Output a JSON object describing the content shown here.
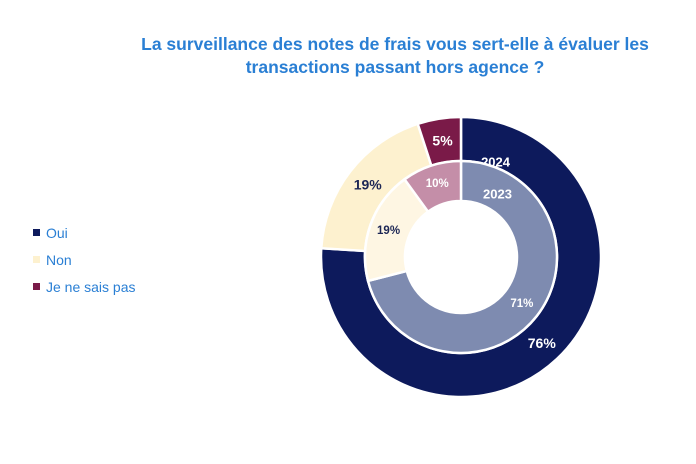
{
  "chart_data": {
    "type": "donut",
    "title_lines": [
      "La surveillance des notes de frais vous sert-elle à évaluer les",
      "transactions passant hors agence ?"
    ],
    "legend_position": "left",
    "categories": [
      "Oui",
      "Non",
      "Je ne sais pas"
    ],
    "series": [
      {
        "name": "2024",
        "ring": "outer",
        "values": [
          76,
          19,
          5
        ],
        "labels": [
          "76%",
          "19%",
          "5%"
        ],
        "colors": [
          "#0d1a5c",
          "#fdf1cf",
          "#7a1a48"
        ],
        "label_colors": [
          "#ffffff",
          "#1c2655",
          "#ffffff"
        ]
      },
      {
        "name": "2023",
        "ring": "inner",
        "values": [
          71,
          19,
          10
        ],
        "labels": [
          "71%",
          "19%",
          "10%"
        ],
        "colors": [
          "#7e8bb0",
          "#fef6e3",
          "#c48ea8"
        ],
        "label_colors": [
          "#ffffff",
          "#1c2655",
          "#ffffff"
        ]
      }
    ],
    "legend_colors": [
      "#0d1a5c",
      "#fdf1cf",
      "#7a1a48"
    ]
  }
}
